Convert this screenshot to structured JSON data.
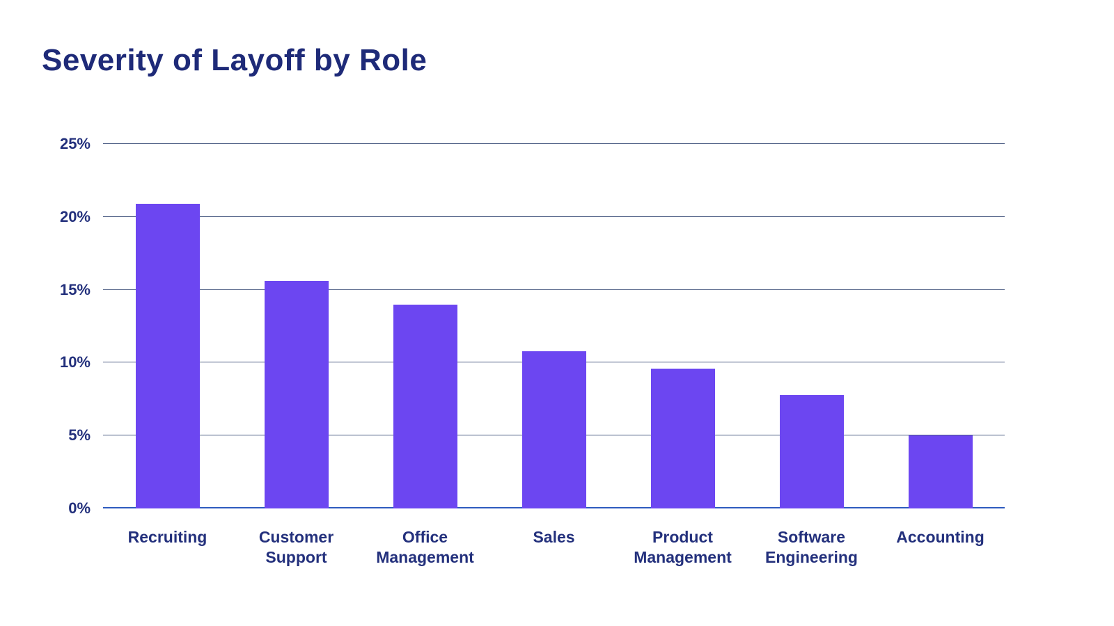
{
  "chart_data": {
    "type": "bar",
    "title": "Severity of Layoff by Role",
    "categories": [
      "Recruiting",
      "Customer Support",
      "Office Management",
      "Sales",
      "Product Management",
      "Software Engineering",
      "Accounting"
    ],
    "values": [
      20.9,
      15.6,
      14.0,
      10.8,
      9.6,
      7.8,
      5.0
    ],
    "ylim": [
      0,
      25
    ],
    "ytick_step": 5,
    "ytick_labels": [
      "0%",
      "5%",
      "10%",
      "15%",
      "20%",
      "25%"
    ],
    "xlabel": "",
    "ylabel": "",
    "grid": "horizontal",
    "legend": "none",
    "colors": {
      "bar": "#6C46F1",
      "title_text": "#1E2A78",
      "tick_text": "#23307C",
      "gridline": "#4A5B82",
      "axis_line": "#2E5BBF"
    }
  }
}
